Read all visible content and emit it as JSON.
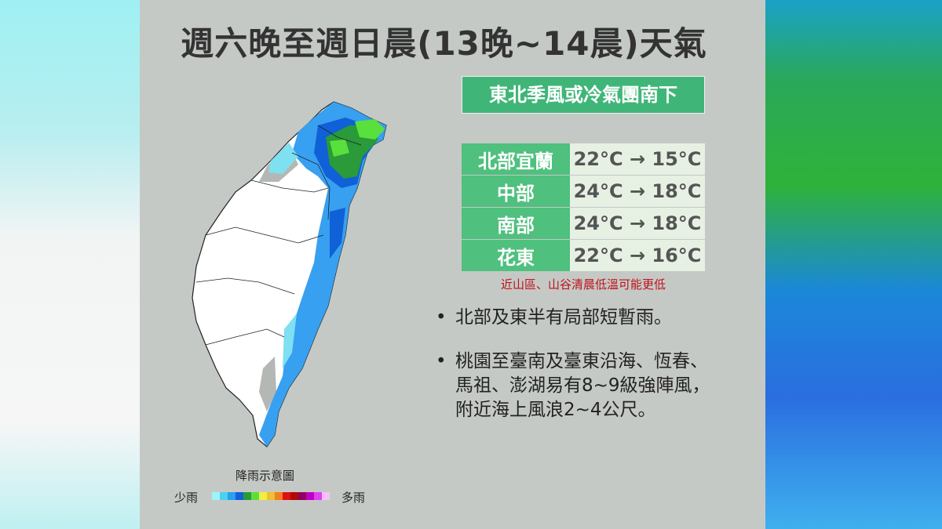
{
  "header": {
    "title": "週六晚至週日晨(13晚~14晨)天氣",
    "subtitle": "東北季風或冷氣團南下"
  },
  "table": {
    "rows": [
      [
        "北部宜蘭",
        "22°C → 15°C"
      ],
      [
        "中部",
        "24°C → 18°C"
      ],
      [
        "南部",
        "24°C → 18°C"
      ],
      [
        "花東",
        "22°C → 16°C"
      ]
    ]
  },
  "note": "近山區、山谷清晨低溫可能更低",
  "bullets": [
    "北部及東半有局部短暫雨。",
    "桃園至臺南及臺東沿海、恆春、馬祖、澎湖易有8~9級強陣風，附近海上風浪2~4公尺。"
  ],
  "legend": {
    "title": "降雨示意圖",
    "low": "少雨",
    "high": "多雨"
  }
}
